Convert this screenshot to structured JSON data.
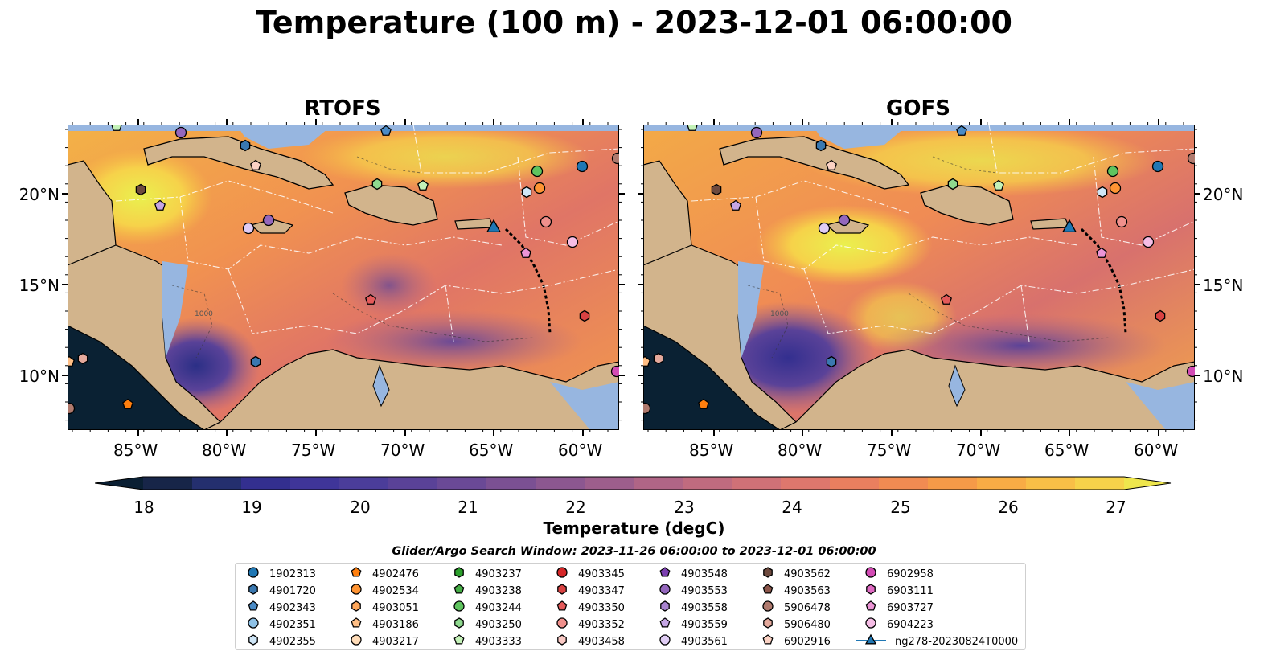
{
  "title": "Temperature (100 m) - 2023-12-01 06:00:00",
  "panels": [
    {
      "title": "RTOFS"
    },
    {
      "title": "GOFS"
    }
  ],
  "lon_ticks": [
    "85°W",
    "80°W",
    "75°W",
    "70°W",
    "65°W",
    "60°W"
  ],
  "lat_ticks": [
    "20°N",
    "15°N",
    "10°N"
  ],
  "colorbar": {
    "label": "Temperature (degC)",
    "ticks": [
      "18",
      "19",
      "20",
      "21",
      "22",
      "23",
      "24",
      "25",
      "26",
      "27"
    ],
    "extend": "both",
    "colors": [
      "#0a1f33",
      "#172548",
      "#242f6e",
      "#332f8f",
      "#3f3599",
      "#4b3d9a",
      "#5a4298",
      "#6a4996",
      "#7b5093",
      "#8c5790",
      "#9d5e8c",
      "#b06586",
      "#c06b7f",
      "#d07177",
      "#de776d",
      "#ea7f5f",
      "#f18b52",
      "#f59a48",
      "#f8ac45",
      "#f8bf47",
      "#f6d24a",
      "#eee64d"
    ]
  },
  "search_window": "Glider/Argo Search Window: 2023-11-26 06:00:00 to 2023-12-01 06:00:00",
  "legend": [
    {
      "label": "1902313",
      "marker": "circle",
      "color": "#1f77b4"
    },
    {
      "label": "4901720",
      "marker": "hexagon",
      "color": "#3a78b0"
    },
    {
      "label": "4902343",
      "marker": "pentagon",
      "color": "#4a8bc6"
    },
    {
      "label": "4902351",
      "marker": "circle",
      "color": "#8ec1e6"
    },
    {
      "label": "4902355",
      "marker": "hexagon",
      "color": "#cfe6f7"
    },
    {
      "label": "4902476",
      "marker": "pentagon",
      "color": "#ff7f0e"
    },
    {
      "label": "4902534",
      "marker": "circle",
      "color": "#ff9433"
    },
    {
      "label": "4903051",
      "marker": "hexagon",
      "color": "#ffa75a"
    },
    {
      "label": "4903186",
      "marker": "pentagon",
      "color": "#ffbf86"
    },
    {
      "label": "4903217",
      "marker": "circle",
      "color": "#ffdcb8"
    },
    {
      "label": "4903237",
      "marker": "hexagon",
      "color": "#2ca02c"
    },
    {
      "label": "4903238",
      "marker": "pentagon",
      "color": "#45ad45"
    },
    {
      "label": "4903244",
      "marker": "circle",
      "color": "#5fc45f"
    },
    {
      "label": "4903250",
      "marker": "hexagon",
      "color": "#8fd98f"
    },
    {
      "label": "4903333",
      "marker": "pentagon",
      "color": "#c4f2b8"
    },
    {
      "label": "4903345",
      "marker": "circle",
      "color": "#d62728"
    },
    {
      "label": "4903347",
      "marker": "hexagon",
      "color": "#d94242"
    },
    {
      "label": "4903350",
      "marker": "pentagon",
      "color": "#e45a5a"
    },
    {
      "label": "4903352",
      "marker": "circle",
      "color": "#f0908c"
    },
    {
      "label": "4903458",
      "marker": "hexagon",
      "color": "#f9c9c4"
    },
    {
      "label": "4903548",
      "marker": "pentagon",
      "color": "#7b3fb0"
    },
    {
      "label": "4903553",
      "marker": "circle",
      "color": "#9467bd"
    },
    {
      "label": "4903558",
      "marker": "hexagon",
      "color": "#a883cf"
    },
    {
      "label": "4903559",
      "marker": "pentagon",
      "color": "#c5a6e4"
    },
    {
      "label": "4903561",
      "marker": "circle",
      "color": "#e0cdf5"
    },
    {
      "label": "4903562",
      "marker": "hexagon",
      "color": "#6e4a3e"
    },
    {
      "label": "4903563",
      "marker": "pentagon",
      "color": "#8c564b"
    },
    {
      "label": "5906478",
      "marker": "circle",
      "color": "#b07a6e"
    },
    {
      "label": "5906480",
      "marker": "hexagon",
      "color": "#e4a99c"
    },
    {
      "label": "6902916",
      "marker": "pentagon",
      "color": "#fbd2c4"
    },
    {
      "label": "6902958",
      "marker": "circle",
      "color": "#d34bb5"
    },
    {
      "label": "6903111",
      "marker": "hexagon",
      "color": "#e06ac3"
    },
    {
      "label": "6903727",
      "marker": "pentagon",
      "color": "#ec95d6"
    },
    {
      "label": "6904223",
      "marker": "circle",
      "color": "#f6bde6"
    },
    {
      "label": "ng278-20230824T0000",
      "marker": "triangle-line",
      "color": "#1f77b4"
    }
  ],
  "colors": {
    "land": "#d2b48c",
    "inland_water": "#97b6e0",
    "coastline": "#000000"
  }
}
